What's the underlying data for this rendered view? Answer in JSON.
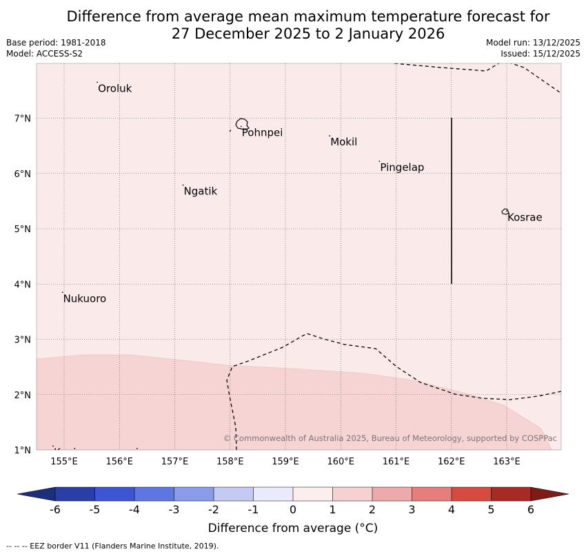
{
  "title": {
    "line1": "Difference from average mean maximum temperature forecast for",
    "line2": "27 December 2025 to 2 January 2026"
  },
  "meta": {
    "base_period": "Base period: 1981-2018",
    "model": "Model: ACCESS-S2",
    "model_run": "Model run: 13/12/2025",
    "issued": "Issued: 15/12/2025"
  },
  "map": {
    "lon_labels": [
      "155°E",
      "156°E",
      "157°E",
      "158°E",
      "159°E",
      "160°E",
      "161°E",
      "162°E",
      "163°E"
    ],
    "lat_labels": [
      "1°N",
      "2°N",
      "3°N",
      "4°N",
      "5°N",
      "6°N",
      "7°N"
    ],
    "places": [
      {
        "name": "Oroluk",
        "lon": 155.6,
        "lat": 7.65
      },
      {
        "name": "Pohnpei",
        "lon": 158.2,
        "lat": 6.85
      },
      {
        "name": "Mokil",
        "lon": 159.8,
        "lat": 6.68
      },
      {
        "name": "Pingelap",
        "lon": 160.7,
        "lat": 6.22
      },
      {
        "name": "Ngatik",
        "lon": 157.15,
        "lat": 5.79
      },
      {
        "name": "Kosrae",
        "lon": 163.0,
        "lat": 5.32
      },
      {
        "name": "Nukuoro",
        "lon": 154.97,
        "lat": 3.85
      },
      {
        "name": "Kapingamarangi",
        "lon": 154.8,
        "lat": 1.07
      }
    ],
    "copyright": "© Commonwealth of Australia 2025, Bureau of Meteorology, supported by COSPPac"
  },
  "colorbar": {
    "ticks": [
      "-6",
      "-5",
      "-4",
      "-3",
      "-2",
      "-1",
      "0",
      "1",
      "2",
      "3",
      "4",
      "5",
      "6"
    ],
    "colors": [
      "#2a3fa6",
      "#3d55d4",
      "#5e76e0",
      "#8a9ce8",
      "#c3cbf2",
      "#e9ebfa",
      "#fdeeee",
      "#f6d1d2",
      "#ecaaaa",
      "#e47f7b",
      "#d74a40",
      "#a82a25"
    ],
    "end_low": "#1e2f7a",
    "end_high": "#7d1b17",
    "label": "Difference from average (°C)"
  },
  "legend_note": "--  --  -- EEZ border V11 (Flanders Marine Institute, 2019)."
}
